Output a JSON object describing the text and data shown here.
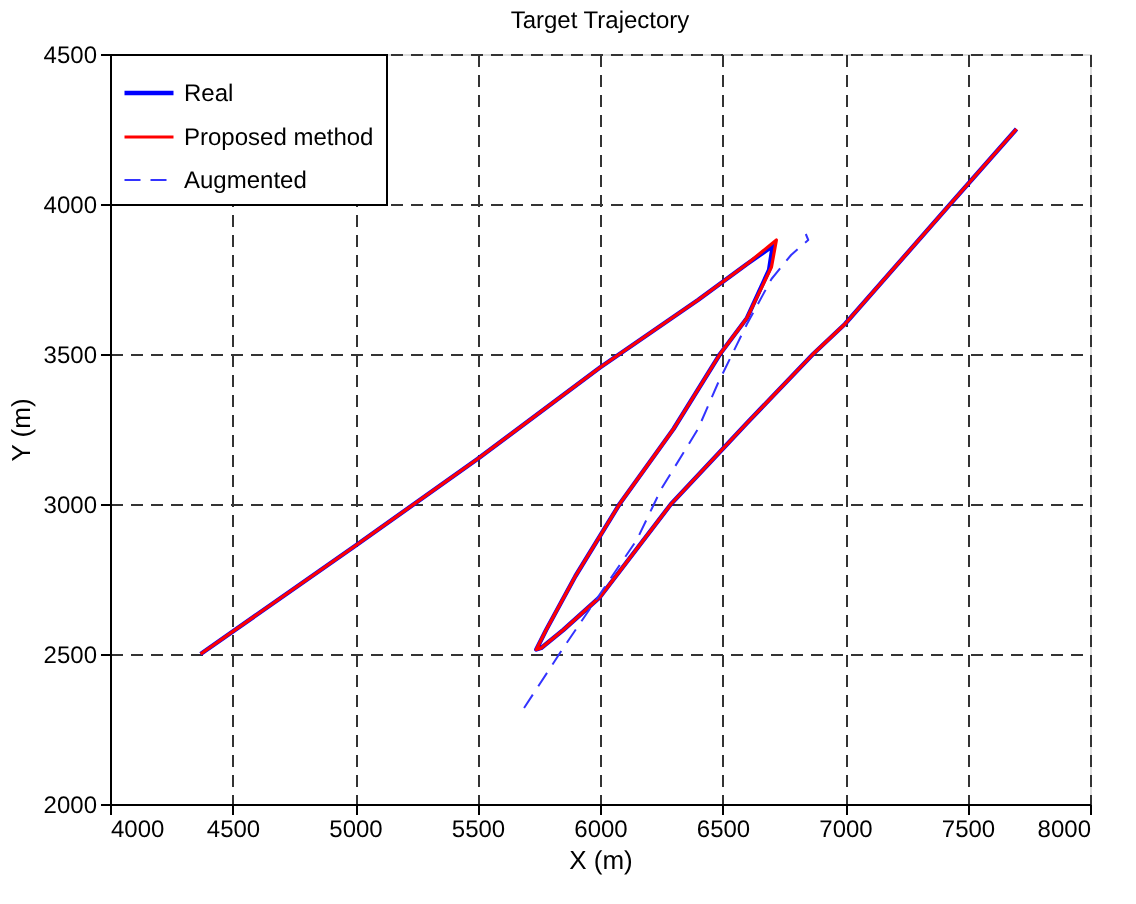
{
  "chart_data": {
    "type": "line",
    "title": "Target Trajectory",
    "xlabel": "X (m)",
    "ylabel": "Y (m)",
    "xlim": [
      4000,
      8000
    ],
    "xticks": [
      4000,
      4500,
      5000,
      5500,
      6000,
      6500,
      7000,
      7500,
      8000
    ],
    "ylim": [
      2000,
      4500
    ],
    "yticks": [
      2000,
      2500,
      3000,
      3500,
      4000,
      4500
    ],
    "grid": true,
    "legend": "top left",
    "marker": "none",
    "series": [
      {
        "name": "Real",
        "color": "#0000ff",
        "line_style": "solid",
        "x": [
          4370,
          5000,
          5500,
          6000,
          6400,
          6600,
          6705,
          6690,
          6600,
          6490,
          6300,
          6080,
          5900,
          5780,
          5740,
          5760,
          5850,
          6000,
          6290,
          6600,
          6870,
          7000,
          7430,
          7700
        ],
        "values": [
          2500,
          2860,
          3150,
          3455,
          3680,
          3800,
          3860,
          3780,
          3620,
          3500,
          3250,
          3000,
          2760,
          2580,
          2515,
          2520,
          2580,
          2690,
          3000,
          3270,
          3500,
          3600,
          4000,
          4250
        ]
      },
      {
        "name": "Proposed method",
        "color": "#ff0000",
        "line_style": "solid",
        "x": [
          4370,
          5000,
          5500,
          6000,
          6400,
          6600,
          6720,
          6700,
          6600,
          6490,
          6300,
          6080,
          5900,
          5780,
          5740,
          5760,
          5850,
          6000,
          6290,
          6600,
          6870,
          7000,
          7430,
          7700
        ],
        "values": [
          2500,
          2860,
          3150,
          3455,
          3680,
          3800,
          3880,
          3790,
          3620,
          3500,
          3250,
          3000,
          2760,
          2580,
          2515,
          2520,
          2580,
          2690,
          3000,
          3270,
          3500,
          3600,
          4000,
          4250
        ]
      },
      {
        "name": "Augmented",
        "color": "#3333ff",
        "line_style": "dashed",
        "x": [
          5690,
          5850,
          6000,
          6150,
          6250,
          6400,
          6480,
          6600,
          6700,
          6780,
          6850,
          6840
        ],
        "values": [
          2320,
          2520,
          2700,
          2880,
          3050,
          3250,
          3400,
          3600,
          3750,
          3830,
          3880,
          3900
        ]
      }
    ]
  }
}
